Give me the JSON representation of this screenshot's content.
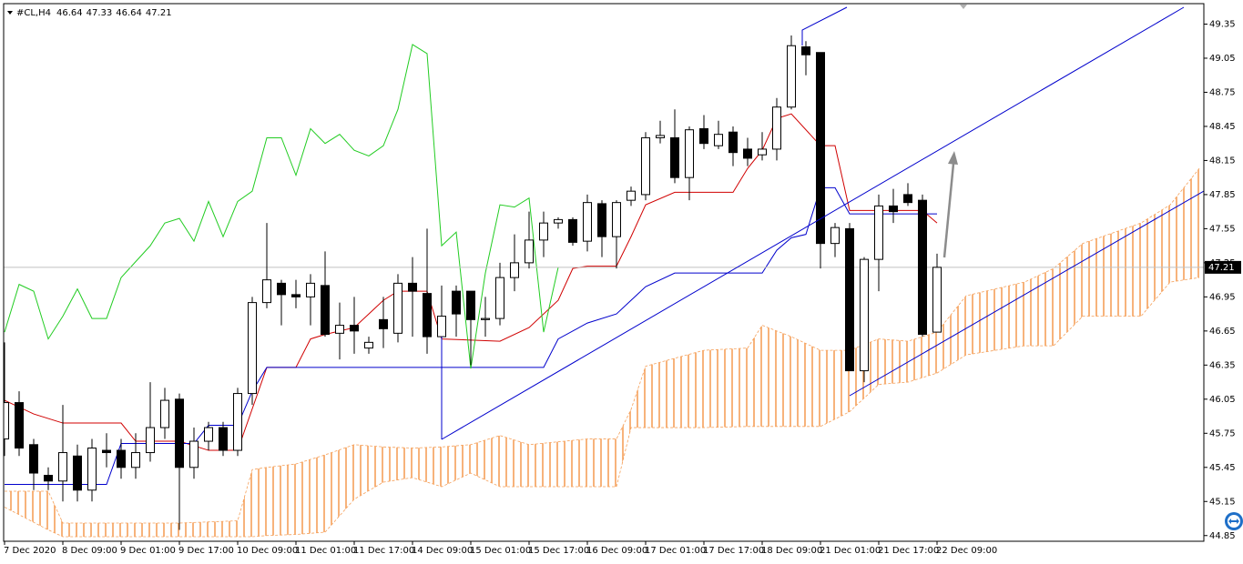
{
  "chart_data": {
    "type": "candlestick",
    "title": "#CL,H4",
    "grid": false,
    "categories": [
      "7 Dec 2020",
      null,
      null,
      null,
      "8 Dec 09:00",
      null,
      null,
      null,
      "9 Dec 01:00",
      null,
      null,
      null,
      "9 Dec 17:00",
      null,
      null,
      null,
      "10 Dec 09:00",
      null,
      null,
      null,
      "11 Dec 01:00",
      null,
      null,
      null,
      "11 Dec 17:00",
      null,
      null,
      null,
      "14 Dec 09:00",
      null,
      null,
      null,
      "15 Dec 01:00",
      null,
      null,
      null,
      "15 Dec 17:00",
      null,
      null,
      null,
      "16 Dec 09:00",
      null,
      null,
      null,
      "17 Dec 01:00",
      null,
      null,
      null,
      "17 Dec 17:00",
      null,
      null,
      null,
      "18 Dec 09:00",
      null,
      null,
      null,
      "21 Dec 01:00",
      null,
      null,
      null,
      "21 Dec 17:00",
      null,
      null,
      null,
      "22 Dec 09:00"
    ],
    "open": [
      45.7,
      46.02,
      45.65,
      45.38,
      45.33,
      45.55,
      45.25,
      45.6,
      45.6,
      45.45,
      45.58,
      45.8,
      46.05,
      45.45,
      45.68,
      45.8,
      45.6,
      46.1,
      46.9,
      47.07,
      46.97,
      46.95,
      47.05,
      46.63,
      46.7,
      46.5,
      46.75,
      46.63,
      47.07,
      46.98,
      46.6,
      47.0,
      47.0,
      46.75,
      46.76,
      47.12,
      47.25,
      47.45,
      47.6,
      47.63,
      47.44,
      47.77,
      47.48,
      47.8,
      47.85,
      48.35,
      48.35,
      48.0,
      48.43,
      48.28,
      48.4,
      48.25,
      48.2,
      48.25,
      48.62,
      49.15,
      49.1,
      47.42,
      47.55,
      46.3,
      47.28,
      47.75,
      47.85,
      47.8,
      46.64
    ],
    "high": [
      46.55,
      46.12,
      45.7,
      45.45,
      46.0,
      45.65,
      45.7,
      45.75,
      45.7,
      45.75,
      46.2,
      46.15,
      46.1,
      45.8,
      45.85,
      45.85,
      46.15,
      46.95,
      47.6,
      47.1,
      47.1,
      47.15,
      47.35,
      46.9,
      46.95,
      46.6,
      46.95,
      47.15,
      47.3,
      47.55,
      47.05,
      47.05,
      47.0,
      46.95,
      47.25,
      47.5,
      47.7,
      47.7,
      47.65,
      47.65,
      47.85,
      47.8,
      47.8,
      47.92,
      48.4,
      48.5,
      48.6,
      48.45,
      48.55,
      48.5,
      48.45,
      48.35,
      48.4,
      48.7,
      49.25,
      49.2,
      49.1,
      47.6,
      47.6,
      47.3,
      47.85,
      47.9,
      47.95,
      47.85,
      47.33
    ],
    "low": [
      45.55,
      45.55,
      45.25,
      45.25,
      45.15,
      45.15,
      45.15,
      45.45,
      45.35,
      45.35,
      45.5,
      45.7,
      44.9,
      45.35,
      45.6,
      45.55,
      45.55,
      46.0,
      46.85,
      46.7,
      46.85,
      46.7,
      46.6,
      46.4,
      46.45,
      46.45,
      46.5,
      46.55,
      46.6,
      46.45,
      46.35,
      46.6,
      46.35,
      46.6,
      46.7,
      47.0,
      47.2,
      47.3,
      47.55,
      47.4,
      47.35,
      47.3,
      47.2,
      47.75,
      47.8,
      48.3,
      47.95,
      47.8,
      48.25,
      48.25,
      48.1,
      48.1,
      48.15,
      48.15,
      48.6,
      48.9,
      47.2,
      47.3,
      46.3,
      46.2,
      47.0,
      47.6,
      47.75,
      46.6,
      46.64
    ],
    "close": [
      46.02,
      45.62,
      45.4,
      45.33,
      45.58,
      45.25,
      45.62,
      45.58,
      45.45,
      45.58,
      45.8,
      46.04,
      45.45,
      45.68,
      45.8,
      45.6,
      46.1,
      46.9,
      47.1,
      46.97,
      46.95,
      47.07,
      46.62,
      46.7,
      46.65,
      46.55,
      46.67,
      47.07,
      47.0,
      46.6,
      46.78,
      46.8,
      46.75,
      46.76,
      47.12,
      47.25,
      47.45,
      47.6,
      47.63,
      47.43,
      47.78,
      47.48,
      47.78,
      47.88,
      48.35,
      48.37,
      48.0,
      48.42,
      48.3,
      48.38,
      48.22,
      48.17,
      48.25,
      48.62,
      49.16,
      49.08,
      47.42,
      47.56,
      46.3,
      47.28,
      47.75,
      47.7,
      47.78,
      46.62,
      47.21
    ],
    "lines": [
      {
        "color": "#d00000",
        "x": [
          0,
          2,
          4,
          8,
          9,
          12,
          14,
          16,
          18,
          20,
          21,
          22,
          24,
          25,
          26,
          27,
          29,
          30,
          34,
          36,
          38,
          39,
          40,
          42,
          43,
          44,
          46,
          50,
          51,
          52,
          53,
          54,
          56,
          57,
          58,
          63,
          64
        ],
        "values": [
          46.04,
          45.92,
          45.84,
          45.84,
          45.68,
          45.68,
          45.6,
          45.6,
          46.33,
          46.33,
          46.58,
          46.62,
          46.68,
          46.8,
          46.92,
          47.0,
          47.0,
          46.58,
          46.56,
          46.68,
          46.92,
          47.2,
          47.22,
          47.22,
          47.48,
          47.76,
          47.87,
          47.87,
          48.08,
          48.24,
          48.52,
          48.56,
          48.28,
          48.28,
          47.71,
          47.71,
          47.6
        ]
      },
      {
        "color": "#0000cc",
        "x": [
          0,
          7,
          8,
          13,
          14,
          16,
          17,
          18,
          37,
          38,
          40,
          42,
          43,
          44,
          46,
          52,
          53,
          54,
          55,
          56,
          57,
          58,
          64
        ],
        "values": [
          45.3,
          45.3,
          45.66,
          45.66,
          45.82,
          45.82,
          46.12,
          46.33,
          46.33,
          46.58,
          46.72,
          46.8,
          46.92,
          47.04,
          47.16,
          47.16,
          47.36,
          47.47,
          47.5,
          47.91,
          47.91,
          47.68,
          47.68
        ]
      },
      {
        "color": "#22cc22",
        "values": [
          46.64,
          47.06,
          47.0,
          46.58,
          46.78,
          47.02,
          46.76,
          46.76,
          47.12,
          47.26,
          47.4,
          47.6,
          47.64,
          47.44,
          47.79,
          47.48,
          47.79,
          47.88,
          48.35,
          48.35,
          48.02,
          48.43,
          48.3,
          48.38,
          48.24,
          48.19,
          48.28,
          48.6,
          49.17,
          49.09,
          47.4,
          47.52,
          46.32,
          47.16,
          47.76,
          47.74,
          47.82,
          46.64,
          47.21
        ]
      }
    ],
    "cloud": {
      "color": "#f5a05a",
      "x": [
        0,
        3,
        4,
        12,
        16,
        17,
        18,
        20,
        22,
        24,
        26,
        28,
        30,
        32,
        34,
        36,
        40,
        42,
        43,
        44,
        48,
        51,
        52,
        54,
        56,
        58,
        60,
        62,
        64,
        66,
        70,
        72,
        74,
        76,
        78,
        80,
        82
      ],
      "upper": [
        45.24,
        45.24,
        44.96,
        44.96,
        44.98,
        45.43,
        45.45,
        45.48,
        45.56,
        45.65,
        45.63,
        45.62,
        45.63,
        45.65,
        45.73,
        45.65,
        45.7,
        45.7,
        45.96,
        46.34,
        46.48,
        46.5,
        46.7,
        46.6,
        46.48,
        46.48,
        46.58,
        46.56,
        46.64,
        46.96,
        47.08,
        47.2,
        47.42,
        47.51,
        47.6,
        47.76,
        48.08
      ],
      "lower": [
        45.1,
        44.9,
        44.84,
        44.84,
        44.84,
        44.84,
        44.85,
        44.86,
        44.88,
        45.17,
        45.32,
        45.36,
        45.28,
        45.4,
        45.28,
        45.28,
        45.28,
        45.28,
        45.8,
        45.8,
        45.8,
        45.81,
        45.81,
        45.81,
        45.81,
        45.94,
        46.18,
        46.2,
        46.28,
        46.44,
        46.52,
        46.52,
        46.78,
        46.78,
        46.78,
        47.08,
        47.12
      ]
    },
    "ylim": [
      44.8,
      49.53
    ],
    "yticks": [
      49.35,
      49.05,
      48.75,
      48.45,
      48.15,
      47.85,
      47.55,
      47.25,
      46.95,
      46.65,
      46.35,
      46.05,
      45.75,
      45.45,
      45.15,
      44.85
    ]
  }
}
